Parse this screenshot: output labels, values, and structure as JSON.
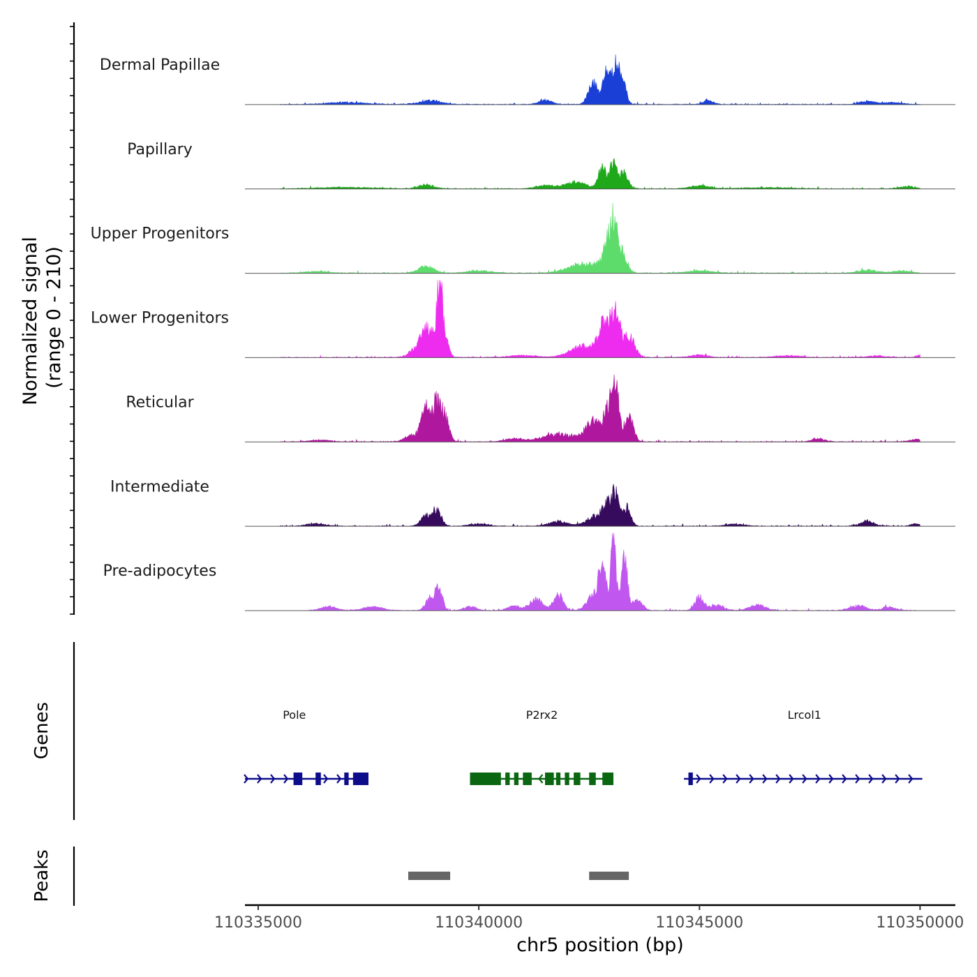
{
  "chart_data": {
    "type": "area",
    "title": "",
    "chromosome": "chr5",
    "xlabel": "chr5 position (bp)",
    "ylabel_line1": "Normalized signal",
    "ylabel_line2": "(range 0 - 210)",
    "y_range": [
      0,
      210
    ],
    "x_range": [
      110334700,
      110350800
    ],
    "x_ticks": [
      110335000,
      110340000,
      110345000,
      110350000
    ],
    "x_tick_labels": [
      "110335000",
      "110340000",
      "110345000",
      "110350000"
    ],
    "tracks": [
      {
        "name": "Dermal Papillae",
        "color": "#1a3fd6",
        "start": 110335500,
        "end": 110350000,
        "peaks": [
          [
            110342600,
            55,
            160
          ],
          [
            110342900,
            80,
            120
          ],
          [
            110343100,
            90,
            120
          ],
          [
            110343250,
            60,
            120
          ],
          [
            110341500,
            12,
            200
          ],
          [
            110345200,
            10,
            160
          ],
          [
            110338900,
            10,
            350
          ],
          [
            110337000,
            5,
            600
          ],
          [
            110348800,
            8,
            250
          ],
          [
            110349400,
            5,
            300
          ]
        ]
      },
      {
        "name": "Papillary",
        "color": "#1ea81a",
        "start": 110335500,
        "end": 110350000,
        "peaks": [
          [
            110342200,
            16,
            350
          ],
          [
            110342800,
            55,
            120
          ],
          [
            110343050,
            65,
            120
          ],
          [
            110343300,
            45,
            120
          ],
          [
            110341500,
            8,
            300
          ],
          [
            110338800,
            10,
            250
          ],
          [
            110345000,
            8,
            300
          ],
          [
            110349700,
            6,
            250
          ],
          [
            110337000,
            4,
            800
          ],
          [
            110346500,
            3,
            800
          ]
        ]
      },
      {
        "name": "Upper Progenitors",
        "color": "#5ddc6c",
        "start": 110335500,
        "end": 110350000,
        "peaks": [
          [
            110342400,
            25,
            500
          ],
          [
            110342900,
            55,
            160
          ],
          [
            110343050,
            115,
            120
          ],
          [
            110343250,
            50,
            150
          ],
          [
            110338800,
            18,
            250
          ],
          [
            110340000,
            6,
            400
          ],
          [
            110345000,
            6,
            400
          ],
          [
            110348800,
            8,
            300
          ],
          [
            110349600,
            6,
            300
          ],
          [
            110336300,
            4,
            400
          ]
        ]
      },
      {
        "name": "Lower Progenitors",
        "color": "#ee2cf0",
        "start": 110335500,
        "end": 110350000,
        "peaks": [
          [
            110338850,
            75,
            180
          ],
          [
            110339100,
            170,
            80
          ],
          [
            110339200,
            70,
            130
          ],
          [
            110338600,
            25,
            220
          ],
          [
            110342400,
            30,
            450
          ],
          [
            110342850,
            80,
            180
          ],
          [
            110343100,
            105,
            140
          ],
          [
            110343400,
            55,
            180
          ],
          [
            110341000,
            6,
            400
          ],
          [
            110345000,
            6,
            300
          ],
          [
            110347000,
            5,
            400
          ],
          [
            110349000,
            4,
            300
          ],
          [
            110350000,
            6,
            120
          ]
        ]
      },
      {
        "name": "Reticular",
        "color": "#b0179f",
        "start": 110335500,
        "end": 110350000,
        "peaks": [
          [
            110338800,
            80,
            160
          ],
          [
            110339050,
            95,
            140
          ],
          [
            110339250,
            60,
            120
          ],
          [
            110338450,
            15,
            200
          ],
          [
            110341800,
            20,
            500
          ],
          [
            110342600,
            55,
            250
          ],
          [
            110342950,
            80,
            150
          ],
          [
            110343100,
            155,
            100
          ],
          [
            110343400,
            70,
            140
          ],
          [
            110340800,
            8,
            300
          ],
          [
            110336400,
            5,
            300
          ],
          [
            110347700,
            8,
            200
          ],
          [
            110349900,
            6,
            200
          ]
        ]
      },
      {
        "name": "Intermediate",
        "color": "#360a5c",
        "start": 110335500,
        "end": 110350000,
        "peaks": [
          [
            110338800,
            28,
            160
          ],
          [
            110339050,
            40,
            140
          ],
          [
            110342600,
            25,
            250
          ],
          [
            110342900,
            55,
            150
          ],
          [
            110343100,
            80,
            120
          ],
          [
            110343350,
            50,
            130
          ],
          [
            110341800,
            12,
            300
          ],
          [
            110340000,
            6,
            300
          ],
          [
            110336300,
            6,
            300
          ],
          [
            110348800,
            14,
            200
          ],
          [
            110349900,
            6,
            150
          ],
          [
            110345800,
            5,
            300
          ]
        ]
      },
      {
        "name": "Pre-adipocytes",
        "color": "#c058ef",
        "start": 110336100,
        "end": 110349900,
        "peaks": [
          [
            110342800,
            120,
            110
          ],
          [
            110343050,
            210,
            80
          ],
          [
            110343300,
            160,
            90
          ],
          [
            110342600,
            40,
            200
          ],
          [
            110343600,
            30,
            150
          ],
          [
            110338900,
            35,
            140
          ],
          [
            110339100,
            60,
            110
          ],
          [
            110341800,
            40,
            150
          ],
          [
            110341300,
            30,
            200
          ],
          [
            110340800,
            12,
            200
          ],
          [
            110345000,
            35,
            150
          ],
          [
            110345400,
            15,
            200
          ],
          [
            110346300,
            15,
            250
          ],
          [
            110336600,
            10,
            250
          ],
          [
            110337600,
            10,
            300
          ],
          [
            110339800,
            10,
            200
          ],
          [
            110348600,
            12,
            250
          ],
          [
            110349300,
            10,
            200
          ]
        ]
      }
    ],
    "genes": {
      "title": "Genes",
      "items": [
        {
          "name": "Pole",
          "strand": "+",
          "color": "#0d0d8c",
          "start": 110334700,
          "end": 110337500,
          "exons": [
            [
              110335800,
              110336000
            ],
            [
              110336300,
              110336420
            ],
            [
              110336950,
              110337050
            ],
            [
              110337150,
              110337500
            ]
          ],
          "label_pos": 110335820
        },
        {
          "name": "P2rx2",
          "strand": "-",
          "color": "#0b6612",
          "start": 110339800,
          "end": 110343050,
          "exons": [
            [
              110339800,
              110340500
            ],
            [
              110340600,
              110340700
            ],
            [
              110340800,
              110340900
            ],
            [
              110341000,
              110341200
            ],
            [
              110341500,
              110341700
            ],
            [
              110341750,
              110341850
            ],
            [
              110341950,
              110342050
            ],
            [
              110342150,
              110342300
            ],
            [
              110342500,
              110342650
            ],
            [
              110342800,
              110343050
            ]
          ],
          "label_pos": 110341430
        },
        {
          "name": "Lrcol1",
          "strand": "+",
          "color": "#0d0d8c",
          "start": 110344650,
          "end": 110350050,
          "exons": [
            [
              110344750,
              110344850
            ]
          ],
          "label_pos": 110347380
        }
      ]
    },
    "peaks_track": {
      "title": "Peaks",
      "color": "#666666",
      "regions": [
        [
          110338400,
          110339350
        ],
        [
          110342500,
          110343400
        ]
      ]
    }
  }
}
